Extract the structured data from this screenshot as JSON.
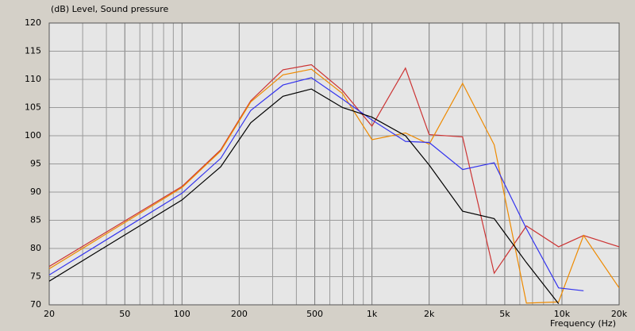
{
  "chart_data": {
    "type": "line",
    "ylabel": "(dB)  Level, Sound pressure",
    "xlabel": "Frequency  (Hz)",
    "xscale": "log",
    "grid": true,
    "xlim": [
      20,
      20000
    ],
    "ylim": [
      70,
      120
    ],
    "xticks": [
      20,
      50,
      100,
      200,
      500,
      {
        "value": 1000,
        "label": "1k"
      },
      {
        "value": 2000,
        "label": "2k"
      },
      {
        "value": 5000,
        "label": "5k"
      },
      {
        "value": 10000,
        "label": "10k"
      },
      {
        "value": 20000,
        "label": "20k"
      }
    ],
    "xminor": [
      30,
      40,
      60,
      70,
      80,
      90,
      300,
      400,
      600,
      700,
      800,
      900,
      3000,
      4000,
      6000,
      7000,
      8000,
      9000
    ],
    "yticks": [
      70,
      75,
      80,
      85,
      90,
      95,
      100,
      105,
      110,
      115,
      120
    ],
    "x": [
      20,
      100,
      160,
      230,
      340,
      480,
      700,
      1000,
      1500,
      2000,
      3000,
      4400,
      6500,
      9600,
      13000,
      20000
    ],
    "series": [
      {
        "color": "#cc3333",
        "values": [
          76.8,
          91,
          97.5,
          106.2,
          111.7,
          112.6,
          108,
          101.7,
          112,
          100.2,
          99.8,
          75.6,
          84,
          80.3,
          82.3,
          80.3
        ]
      },
      {
        "color": "#ee8a00",
        "values": [
          76.4,
          90.8,
          97.3,
          106,
          110.8,
          111.8,
          107.5,
          99.3,
          100.5,
          98.5,
          109.3,
          98.4,
          70.3,
          70.5,
          82.3,
          73
        ]
      },
      {
        "color": "#3333ee",
        "values": [
          75.3,
          89.8,
          96,
          104.5,
          109,
          110.3,
          106.5,
          102.8,
          99,
          98.8,
          94,
          95.2,
          83.5,
          73,
          72.5,
          null
        ]
      },
      {
        "color": "#000000",
        "values": [
          74.2,
          88.6,
          94.5,
          102.3,
          107,
          108.3,
          105,
          103.3,
          100,
          94.8,
          86.6,
          85.3,
          77.5,
          70.2,
          null,
          null
        ]
      }
    ]
  }
}
